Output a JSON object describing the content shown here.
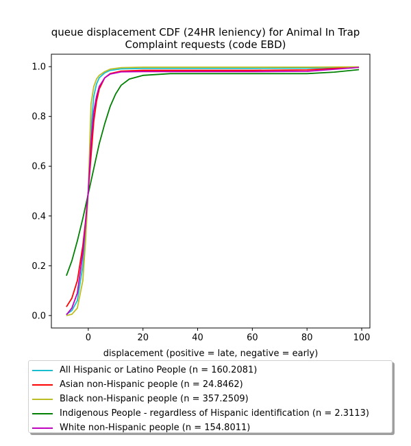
{
  "chart_data": {
    "type": "line",
    "title_lines": [
      "queue displacement CDF (24HR leniency) for Animal In Trap",
      "Complaint  requests (code EBD)"
    ],
    "xlabel": "displacement (positive = late, negative = early)",
    "ylabel": "",
    "xlim": [
      -13.5,
      103
    ],
    "ylim": [
      -0.05,
      1.05
    ],
    "xticks": [
      0,
      20,
      40,
      60,
      80,
      100
    ],
    "yticks": [
      0.0,
      0.2,
      0.4,
      0.6,
      0.8,
      1.0
    ],
    "xtick_labels": [
      "0",
      "20",
      "40",
      "60",
      "80",
      "100"
    ],
    "ytick_labels": [
      "0.0",
      "0.2",
      "0.4",
      "0.6",
      "0.8",
      "1.0"
    ],
    "grid": false,
    "legend_position": "below",
    "series": [
      {
        "name": "All Hispanic or Latino People (n = 160.2081)",
        "color": "#17becf",
        "x": [
          -8,
          -6,
          -4,
          -2,
          -1,
          0,
          1,
          2,
          3,
          4,
          6,
          8,
          12,
          20,
          40,
          60,
          80,
          99
        ],
        "y": [
          0.005,
          0.02,
          0.06,
          0.2,
          0.33,
          0.5,
          0.75,
          0.88,
          0.93,
          0.955,
          0.975,
          0.985,
          0.991,
          0.993,
          0.993,
          0.993,
          0.994,
          0.998
        ]
      },
      {
        "name": "Asian non-Hispanic people (n = 24.8462)",
        "color": "#ff0000",
        "x": [
          -8,
          -6,
          -4,
          -2,
          -1,
          0,
          1,
          2,
          3,
          4,
          6,
          8,
          12,
          20,
          40,
          60,
          80,
          99
        ],
        "y": [
          0.035,
          0.07,
          0.14,
          0.28,
          0.38,
          0.5,
          0.64,
          0.78,
          0.86,
          0.91,
          0.955,
          0.972,
          0.982,
          0.985,
          0.985,
          0.985,
          0.987,
          0.998
        ]
      },
      {
        "name": "Black non-Hispanic people (n = 357.2509)",
        "color": "#bcbd22",
        "x": [
          -8,
          -6,
          -4,
          -2,
          -1,
          0,
          1,
          2,
          3,
          4,
          6,
          8,
          12,
          20,
          40,
          60,
          80,
          99
        ],
        "y": [
          0.0,
          0.005,
          0.03,
          0.14,
          0.3,
          0.5,
          0.85,
          0.92,
          0.95,
          0.965,
          0.98,
          0.99,
          0.996,
          0.998,
          0.998,
          0.998,
          0.998,
          0.999
        ]
      },
      {
        "name": "Indigenous People - regardless of Hispanic identification (n = 2.3113)",
        "color": "#008000",
        "x": [
          -8,
          -6,
          -4,
          -2,
          0,
          2,
          4,
          6,
          8,
          10,
          12,
          15,
          20,
          30,
          40,
          60,
          80,
          90,
          99
        ],
        "y": [
          0.16,
          0.22,
          0.3,
          0.39,
          0.49,
          0.59,
          0.69,
          0.77,
          0.84,
          0.89,
          0.925,
          0.95,
          0.965,
          0.972,
          0.972,
          0.972,
          0.972,
          0.978,
          0.988
        ]
      },
      {
        "name": "White non-Hispanic people (n = 154.8011)",
        "color": "#bf00bf",
        "x": [
          -8,
          -6,
          -4,
          -2,
          -1,
          0,
          1,
          2,
          3,
          4,
          6,
          8,
          12,
          20,
          40,
          60,
          80,
          99
        ],
        "y": [
          0.003,
          0.03,
          0.09,
          0.25,
          0.37,
          0.5,
          0.7,
          0.82,
          0.88,
          0.92,
          0.955,
          0.97,
          0.979,
          0.98,
          0.98,
          0.98,
          0.981,
          0.997
        ]
      }
    ]
  }
}
